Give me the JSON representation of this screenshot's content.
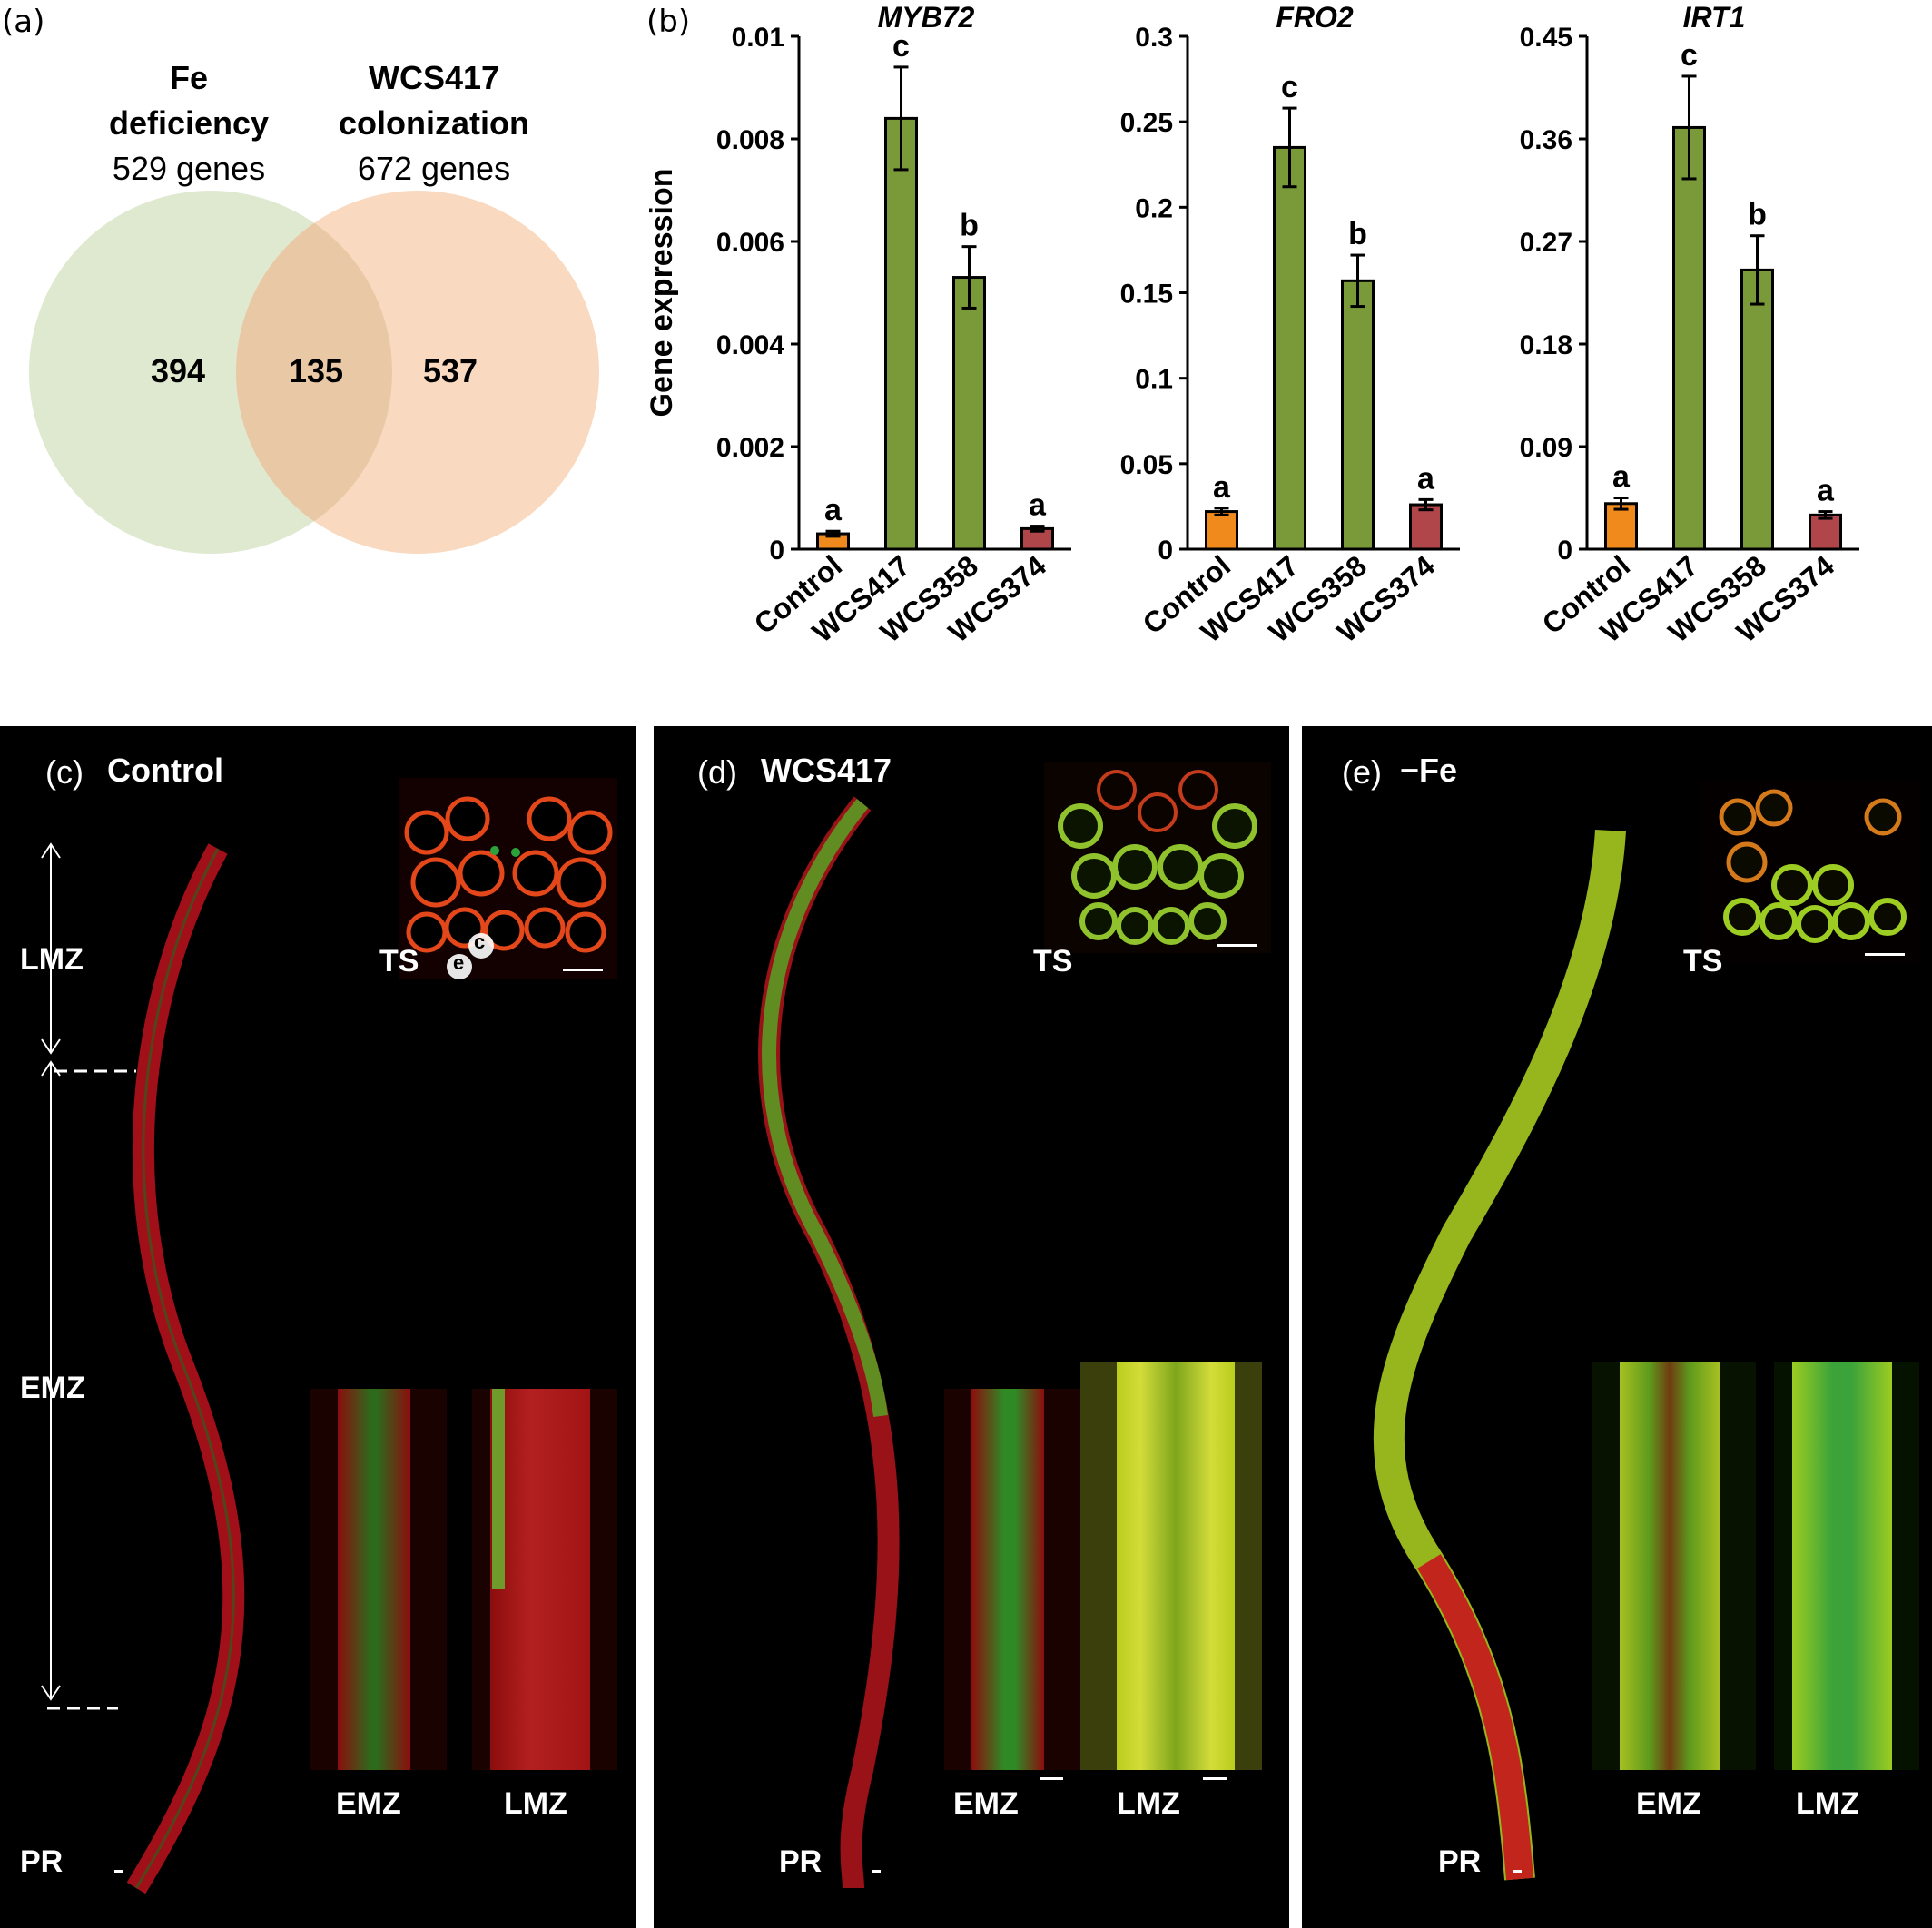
{
  "panel_a": {
    "letter": "(a)",
    "set1": {
      "head1": "Fe",
      "head2": "deficiency",
      "count": "529 genes",
      "color": "#dfe9cf"
    },
    "set2": {
      "head1": "WCS417",
      "head2": "colonization",
      "count": "672 genes",
      "color": "#f9d9bf"
    },
    "overlap_color": "#e8c8a5",
    "only1": "394",
    "both": "135",
    "only2": "537"
  },
  "panel_b": {
    "letter": "(b)"
  },
  "chart_data": [
    {
      "type": "bar",
      "title": "MYB72",
      "ylabel": "Gene expression",
      "categories": [
        "Control",
        "WCS417",
        "WCS358",
        "WCS374"
      ],
      "values": [
        0.0003,
        0.0084,
        0.0053,
        0.0004
      ],
      "errors": [
        5e-05,
        0.001,
        0.0006,
        5e-05
      ],
      "letters": [
        "a",
        "c",
        "b",
        "a"
      ],
      "ylim": [
        0,
        0.01
      ],
      "ticks": [
        "0",
        "0.002",
        "0.004",
        "0.006",
        "0.008",
        "0.01"
      ],
      "tick_values": [
        0,
        0.002,
        0.004,
        0.006,
        0.008,
        0.01
      ],
      "colors": [
        "#f08a1c",
        "#7a9a3a",
        "#7a9a3a",
        "#b0454a"
      ]
    },
    {
      "type": "bar",
      "title": "FRO2",
      "categories": [
        "Control",
        "WCS417",
        "WCS358",
        "WCS374"
      ],
      "values": [
        0.022,
        0.235,
        0.157,
        0.026
      ],
      "errors": [
        0.002,
        0.023,
        0.015,
        0.003
      ],
      "letters": [
        "a",
        "c",
        "b",
        "a"
      ],
      "ylim": [
        0,
        0.3
      ],
      "ticks": [
        "0",
        "0.05",
        "0.1",
        "0.15",
        "0.2",
        "0.25",
        "0.3"
      ],
      "tick_values": [
        0,
        0.05,
        0.1,
        0.15,
        0.2,
        0.25,
        0.3
      ],
      "colors": [
        "#f08a1c",
        "#7a9a3a",
        "#7a9a3a",
        "#b0454a"
      ]
    },
    {
      "type": "bar",
      "title": "IRT1",
      "categories": [
        "Control",
        "WCS417",
        "WCS358",
        "WCS374"
      ],
      "values": [
        0.04,
        0.37,
        0.245,
        0.03
      ],
      "errors": [
        0.005,
        0.045,
        0.03,
        0.003
      ],
      "letters": [
        "a",
        "c",
        "b",
        "a"
      ],
      "ylim": [
        0,
        0.45
      ],
      "ticks": [
        "0",
        "0.09",
        "0.18",
        "0.27",
        "0.36",
        "0.45"
      ],
      "tick_values": [
        0,
        0.09,
        0.18,
        0.27,
        0.36,
        0.45
      ],
      "colors": [
        "#f08a1c",
        "#7a9a3a",
        "#7a9a3a",
        "#b0454a"
      ]
    }
  ],
  "panel_c": {
    "letter": "(c)",
    "title": "Control",
    "lmz": "LMZ",
    "emz": "EMZ",
    "pr": "PR",
    "ts": "TS",
    "inset_emz": "EMZ",
    "inset_lmz": "LMZ",
    "cell_c": "c",
    "cell_e": "e"
  },
  "panel_d": {
    "letter": "(d)",
    "title": "WCS417",
    "pr": "PR",
    "ts": "TS",
    "inset_emz": "EMZ",
    "inset_lmz": "LMZ"
  },
  "panel_e": {
    "letter": "(e)",
    "title": "−Fe",
    "pr": "PR",
    "ts": "TS",
    "inset_emz": "EMZ",
    "inset_lmz": "LMZ"
  }
}
